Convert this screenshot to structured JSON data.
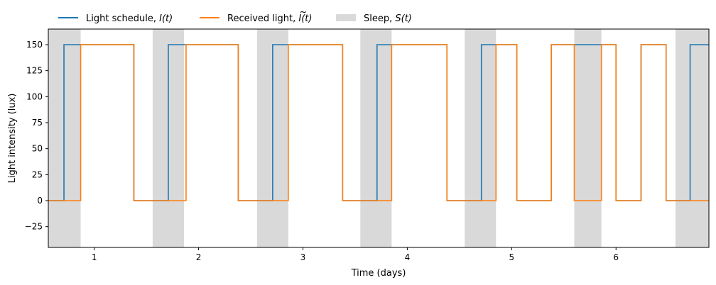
{
  "chart_data": {
    "type": "line",
    "xlabel": "Time (days)",
    "ylabel": "Light intensity (lux)",
    "xlim": [
      0.56,
      6.89
    ],
    "ylim": [
      -45,
      165
    ],
    "x_ticks": [
      1,
      2,
      3,
      4,
      5,
      6
    ],
    "y_ticks": [
      -25,
      0,
      25,
      50,
      75,
      100,
      125,
      150
    ],
    "grid": false,
    "legend": {
      "placement": "top-left-outside",
      "entries": [
        {
          "label": "Light schedule, ",
          "math": "I(t)",
          "tilde": false,
          "color": "#1f77b4",
          "kind": "line"
        },
        {
          "label": "Received light, ",
          "math": "I(t)",
          "tilde": true,
          "color": "#ff7f0e",
          "kind": "line"
        },
        {
          "label": "Sleep, ",
          "math": "S(t)",
          "tilde": false,
          "color": "#d9d9d9",
          "kind": "patch"
        }
      ]
    },
    "sleep_color": "#d9d9d9",
    "sleep_intervals": [
      [
        0.56,
        0.87
      ],
      [
        1.56,
        1.86
      ],
      [
        2.56,
        2.86
      ],
      [
        3.55,
        3.85
      ],
      [
        4.55,
        4.85
      ],
      [
        5.6,
        5.86
      ],
      [
        6.57,
        6.89
      ]
    ],
    "series": [
      {
        "name": "Light schedule",
        "color": "#1f77b4",
        "steps": [
          [
            0.56,
            0
          ],
          [
            0.71,
            150
          ],
          [
            1.38,
            0
          ],
          [
            1.71,
            150
          ],
          [
            2.38,
            0
          ],
          [
            2.71,
            150
          ],
          [
            3.38,
            0
          ],
          [
            3.71,
            150
          ],
          [
            4.38,
            0
          ],
          [
            4.71,
            150
          ],
          [
            4.85,
            150
          ],
          [
            5.05,
            0
          ],
          [
            5.38,
            150
          ],
          [
            5.6,
            150
          ],
          [
            5.86,
            150
          ],
          [
            6.0,
            0
          ],
          [
            6.24,
            150
          ],
          [
            6.48,
            0
          ],
          [
            6.71,
            150
          ],
          [
            6.89,
            150
          ]
        ]
      },
      {
        "name": "Received light",
        "color": "#ff7f0e",
        "steps": [
          [
            0.56,
            0
          ],
          [
            0.87,
            150
          ],
          [
            1.38,
            0
          ],
          [
            1.88,
            150
          ],
          [
            2.38,
            0
          ],
          [
            2.86,
            150
          ],
          [
            3.38,
            0
          ],
          [
            3.85,
            150
          ],
          [
            4.38,
            0
          ],
          [
            4.85,
            150
          ],
          [
            5.05,
            0
          ],
          [
            5.38,
            150
          ],
          [
            5.6,
            0
          ],
          [
            5.86,
            150
          ],
          [
            6.0,
            0
          ],
          [
            6.24,
            150
          ],
          [
            6.48,
            0
          ],
          [
            6.89,
            0
          ]
        ]
      }
    ]
  }
}
